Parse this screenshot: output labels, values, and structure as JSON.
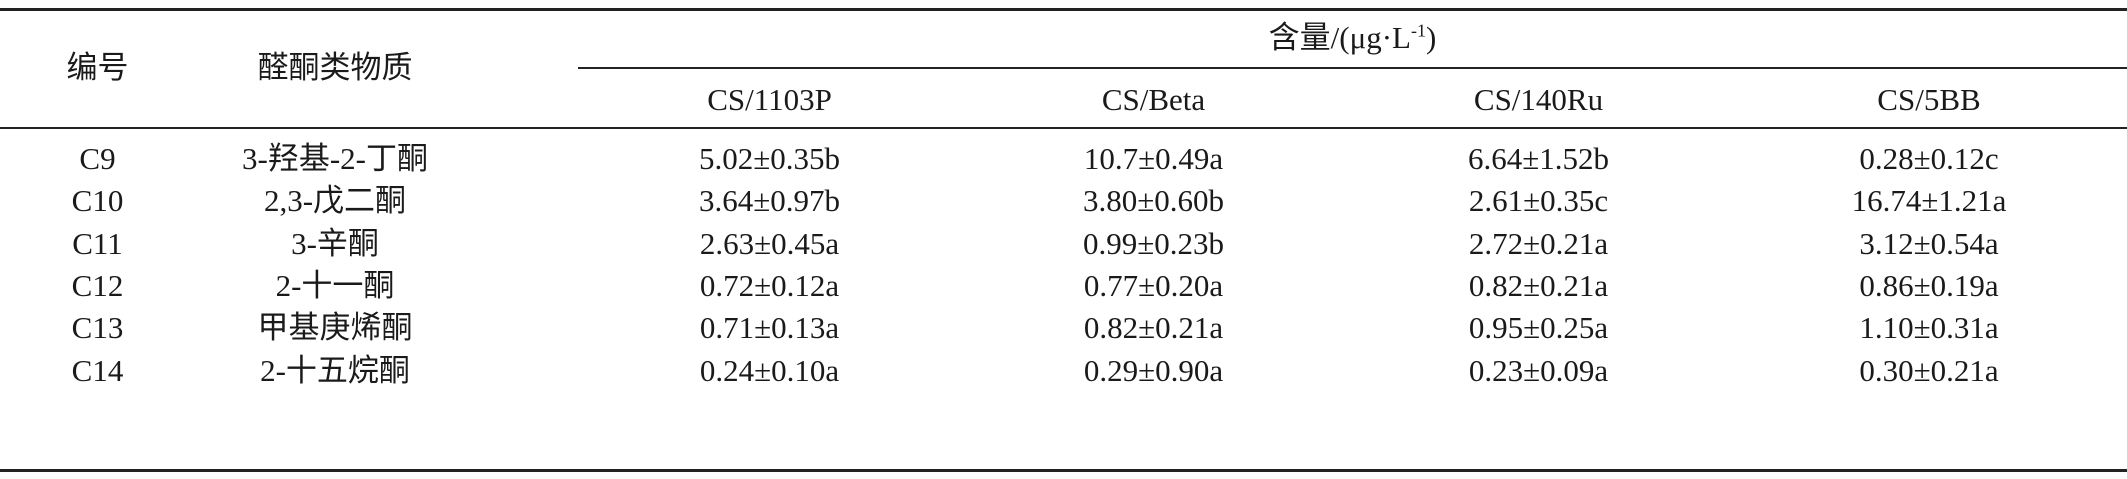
{
  "table": {
    "header": {
      "id": "编号",
      "substance": "醛酮类物质",
      "content_group": "含量/(μg·L",
      "content_group_sup": "-1",
      "content_group_close": ")",
      "columns": [
        "CS/1103P",
        "CS/Beta",
        "CS/140Ru",
        "CS/5BB"
      ]
    },
    "rows": [
      {
        "id": "C9",
        "substance": "3-羟基-2-丁酮",
        "values": [
          "5.02±0.35b",
          "10.7±0.49a",
          "6.64±1.52b",
          "0.28±0.12c"
        ]
      },
      {
        "id": "C10",
        "substance": "2,3-戊二酮",
        "values": [
          "3.64±0.97b",
          "3.80±0.60b",
          "2.61±0.35c",
          "16.74±1.21a"
        ]
      },
      {
        "id": "C11",
        "substance": "3-辛酮",
        "values": [
          "2.63±0.45a",
          "0.99±0.23b",
          "2.72±0.21a",
          "3.12±0.54a"
        ]
      },
      {
        "id": "C12",
        "substance": "2-十一酮",
        "values": [
          "0.72±0.12a",
          "0.77±0.20a",
          "0.82±0.21a",
          "0.86±0.19a"
        ]
      },
      {
        "id": "C13",
        "substance": "甲基庚烯酮",
        "values": [
          "0.71±0.13a",
          "0.82±0.21a",
          "0.95±0.25a",
          "1.10±0.31a"
        ]
      },
      {
        "id": "C14",
        "substance": "2-十五烷酮",
        "values": [
          "0.24±0.10a",
          "0.29±0.90a",
          "0.23±0.09a",
          "0.30±0.21a"
        ]
      }
    ]
  }
}
